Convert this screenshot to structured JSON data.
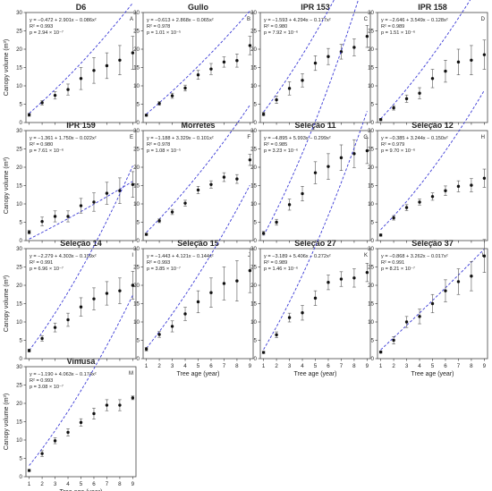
{
  "figure": {
    "x_label": "Tree age (year)",
    "y_label": "Canopy volume (m³)",
    "x_ticks": [
      1,
      2,
      3,
      4,
      5,
      6,
      7,
      8,
      9
    ],
    "y_ticks": [
      0,
      5,
      10,
      15,
      20,
      25,
      30
    ]
  },
  "chart_data": [
    {
      "type": "scatter",
      "title": "D6",
      "letter": "A",
      "equation": "y = −0.472 + 2.901x − 0.086x²",
      "r2": "R² = 0.993",
      "p": "p = 2.94 × 10⁻⁷",
      "x": [
        1,
        2,
        3,
        4,
        5,
        6,
        7,
        8,
        9
      ],
      "values": [
        2.1,
        5.4,
        7.4,
        9.0,
        12.0,
        14.2,
        15.5,
        17.0,
        19.0
      ],
      "errors": [
        0.4,
        0.6,
        1.0,
        1.5,
        3.0,
        3.5,
        3.5,
        4.0,
        4.5
      ],
      "ylim": [
        0,
        30
      ]
    },
    {
      "type": "scatter",
      "title": "Gullo",
      "letter": "B",
      "equation": "y = −0.613 + 2.868x − 0.065x²",
      "r2": "R² = 0.978",
      "p": "p = 1.01 × 10⁻⁵",
      "x": [
        1,
        2,
        3,
        4,
        5,
        6,
        7,
        8,
        9
      ],
      "values": [
        2.0,
        5.2,
        7.3,
        9.4,
        13.0,
        14.6,
        16.5,
        16.9,
        21.0
      ],
      "errors": [
        0.3,
        0.5,
        0.7,
        0.8,
        1.2,
        1.5,
        1.4,
        1.8,
        2.5
      ],
      "ylim": [
        0,
        30
      ]
    },
    {
      "type": "scatter",
      "title": "IPR 153",
      "letter": "C",
      "equation": "y = −1.593 + 4.294x − 0.177x²",
      "r2": "R² = 0.980",
      "p": "p = 7.92 × 10⁻⁶",
      "x": [
        1,
        2,
        3,
        4,
        5,
        6,
        7,
        8,
        9
      ],
      "values": [
        2.3,
        6.2,
        9.3,
        11.5,
        16.2,
        18.0,
        19.3,
        20.5,
        23.5
      ],
      "errors": [
        0.5,
        1.0,
        1.8,
        1.8,
        2.0,
        2.2,
        2.0,
        2.3,
        3.0
      ],
      "ylim": [
        0,
        30
      ]
    },
    {
      "type": "scatter",
      "title": "IPR 158",
      "letter": "D",
      "equation": "y = −2.646 + 3.549x − 0.128x²",
      "r2": "R² = 0.989",
      "p": "p = 1.51 × 10⁻⁶",
      "x": [
        1,
        2,
        3,
        4,
        5,
        6,
        7,
        8,
        9
      ],
      "values": [
        0.8,
        4.0,
        6.5,
        8.0,
        12.0,
        14.0,
        16.5,
        17.0,
        18.5
      ],
      "errors": [
        0.3,
        0.6,
        1.0,
        1.5,
        2.5,
        3.0,
        3.5,
        4.0,
        4.0
      ],
      "ylim": [
        0,
        30
      ]
    },
    {
      "type": "scatter",
      "title": "IPR 159",
      "letter": "E",
      "equation": "y = −1.361 + 1.750x − 0.022x²",
      "r2": "R² = 0.980",
      "p": "p = 7.61 × 10⁻⁶",
      "x": [
        1,
        2,
        3,
        4,
        5,
        6,
        7,
        8,
        9
      ],
      "values": [
        2.3,
        5.2,
        6.6,
        6.6,
        9.5,
        10.5,
        12.9,
        13.6,
        15.3
      ],
      "errors": [
        0.5,
        1.2,
        1.5,
        1.5,
        2.0,
        2.5,
        3.0,
        3.5,
        3.5
      ],
      "ylim": [
        0,
        30
      ]
    },
    {
      "type": "scatter",
      "title": "Morretes",
      "letter": "F",
      "equation": "y = −1.188 + 3.329x − 0.101x²",
      "r2": "R² = 0.978",
      "p": "p = 1.08 × 10⁻⁵",
      "x": [
        1,
        2,
        3,
        4,
        5,
        6,
        7,
        8,
        9
      ],
      "values": [
        1.7,
        5.4,
        7.8,
        10.2,
        13.8,
        15.3,
        17.3,
        16.8,
        22.0
      ],
      "errors": [
        0.3,
        0.5,
        0.7,
        0.8,
        1.0,
        1.0,
        1.2,
        1.2,
        1.5
      ],
      "ylim": [
        0,
        30
      ]
    },
    {
      "type": "scatter",
      "title": "Seleção 11",
      "letter": "G",
      "equation": "y = −4.895 + 5.993x − 0.299x²",
      "r2": "R² = 0.985",
      "p": "p = 3.23 × 10⁻⁶",
      "x": [
        1,
        2,
        3,
        4,
        5,
        6,
        7,
        8,
        9
      ],
      "values": [
        2.0,
        5.0,
        9.8,
        12.8,
        18.5,
        20.2,
        22.6,
        23.7,
        24.5
      ],
      "errors": [
        0.5,
        0.8,
        1.5,
        2.0,
        3.0,
        3.5,
        3.5,
        3.8,
        3.5
      ],
      "ylim": [
        0,
        30
      ]
    },
    {
      "type": "scatter",
      "title": "Seleção 12",
      "letter": "H",
      "equation": "y = −0.385 + 3.244x − 0.150x²",
      "r2": "R² = 0.979",
      "p": "p = 9.70 × 10⁻⁶",
      "x": [
        1,
        2,
        3,
        4,
        5,
        6,
        7,
        8,
        9
      ],
      "values": [
        1.5,
        6.2,
        9.0,
        10.5,
        12.0,
        13.6,
        14.8,
        15.1,
        17.0
      ],
      "errors": [
        0.3,
        0.6,
        0.8,
        0.8,
        1.0,
        1.3,
        1.5,
        1.8,
        2.5
      ],
      "ylim": [
        0,
        30
      ]
    },
    {
      "type": "scatter",
      "title": "Seleção 14",
      "letter": "I",
      "equation": "y = −2.279 + 4.303x − 0.199x²",
      "r2": "R² = 0.991",
      "p": "p = 6.96 × 10⁻⁷",
      "x": [
        1,
        2,
        3,
        4,
        5,
        6,
        7,
        8,
        9
      ],
      "values": [
        2.2,
        5.5,
        8.5,
        10.6,
        14.1,
        16.3,
        17.8,
        18.5,
        20.0
      ],
      "errors": [
        0.4,
        0.7,
        1.2,
        1.8,
        2.5,
        3.0,
        3.2,
        3.5,
        3.8
      ],
      "ylim": [
        0,
        30
      ]
    },
    {
      "type": "scatter",
      "title": "Seleção 15",
      "letter": "J",
      "equation": "y = −1.443 + 4.121x − 0.144x²",
      "r2": "R² = 0.993",
      "p": "p = 3.85 × 10⁻⁷",
      "x": [
        1,
        2,
        3,
        4,
        5,
        6,
        7,
        8,
        9
      ],
      "values": [
        2.6,
        6.6,
        8.8,
        12.2,
        15.5,
        18.0,
        20.5,
        21.2,
        24.0
      ],
      "errors": [
        0.5,
        0.8,
        1.5,
        1.8,
        3.0,
        4.0,
        4.5,
        5.5,
        6.0
      ],
      "ylim": [
        0,
        30
      ]
    },
    {
      "type": "scatter",
      "title": "Seleção 27",
      "letter": "K",
      "equation": "y = −3.189 + 5.406x − 0.272x²",
      "r2": "R² = 0.989",
      "p": "p = 1.46 × 10⁻⁶",
      "x": [
        1,
        2,
        3,
        4,
        5,
        6,
        7,
        8,
        9
      ],
      "values": [
        1.7,
        6.5,
        11.2,
        12.5,
        16.5,
        20.8,
        21.7,
        22.0,
        23.5
      ],
      "errors": [
        0.3,
        0.8,
        1.2,
        2.0,
        2.0,
        2.0,
        2.0,
        2.5,
        2.5
      ],
      "ylim": [
        0,
        30
      ]
    },
    {
      "type": "scatter",
      "title": "Seleção 37",
      "letter": "L",
      "equation": "y = −0.868 + 3.262x − 0.017x²",
      "r2": "R² = 0.991",
      "p": "p = 8.21 × 10⁻⁷",
      "x": [
        1,
        2,
        3,
        4,
        5,
        6,
        7,
        8,
        9
      ],
      "values": [
        1.8,
        5.0,
        10.0,
        11.5,
        15.0,
        18.5,
        21.0,
        22.5,
        28.0
      ],
      "errors": [
        0.3,
        1.0,
        1.5,
        2.0,
        2.5,
        3.0,
        3.5,
        4.0,
        4.5
      ],
      "ylim": [
        0,
        30
      ]
    },
    {
      "type": "scatter",
      "title": "Vimusa",
      "letter": "M",
      "equation": "y = −1.190 + 4.063x − 0.174x²",
      "r2": "R² = 0.993",
      "p": "p = 3.08 × 10⁻⁷",
      "x": [
        1,
        2,
        3,
        4,
        5,
        6,
        7,
        8,
        9
      ],
      "values": [
        1.7,
        6.3,
        9.8,
        12.1,
        14.8,
        17.2,
        19.5,
        19.5,
        21.5
      ],
      "errors": [
        0.3,
        0.8,
        0.8,
        1.0,
        1.0,
        1.5,
        1.5,
        1.5,
        0.5
      ],
      "ylim": [
        0,
        30
      ]
    }
  ]
}
